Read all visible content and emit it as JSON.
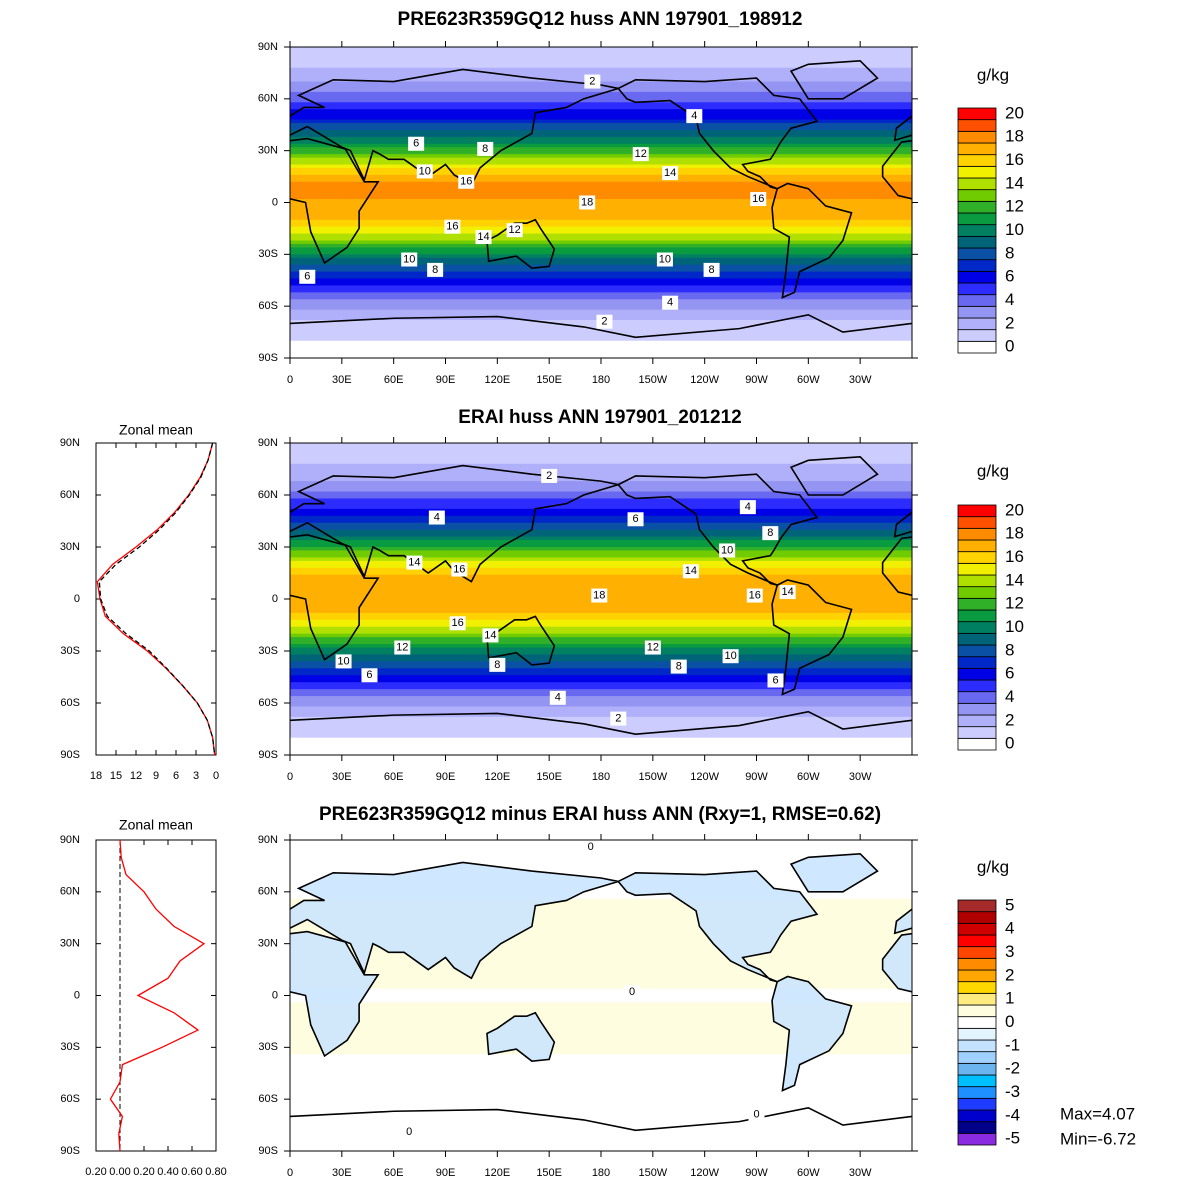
{
  "chart_data": [
    {
      "type": "map",
      "title": "PRE623R359GQ12 huss ANN 197901_198912",
      "xlim": [
        0,
        360
      ],
      "ylim": [
        -90,
        90
      ],
      "xticks": [
        0,
        {
          "value": 30,
          "label": "30E"
        },
        {
          "value": 60,
          "label": "60E"
        },
        {
          "value": 90,
          "label": "90E"
        },
        {
          "value": 120,
          "label": "120E"
        },
        {
          "value": 150,
          "label": "150E"
        },
        180,
        {
          "value": 210,
          "label": "150W"
        },
        {
          "value": 240,
          "label": "120W"
        },
        {
          "value": 270,
          "label": "90W"
        },
        {
          "value": 300,
          "label": "60W"
        },
        {
          "value": 330,
          "label": "30W"
        }
      ],
      "yticks": [
        {
          "value": 90,
          "label": "90N"
        },
        {
          "value": 60,
          "label": "60N"
        },
        {
          "value": 30,
          "label": "30N"
        },
        0,
        {
          "value": -30,
          "label": "30S"
        },
        {
          "value": -60,
          "label": "60S"
        },
        {
          "value": -90,
          "label": "90S"
        }
      ],
      "colorbar": {
        "unit": "g/kg",
        "ticks": [
          0,
          2,
          4,
          6,
          8,
          10,
          12,
          14,
          16,
          18,
          20
        ],
        "colors": [
          "#ffffff",
          "#ccccff",
          "#b0b0fa",
          "#9494f2",
          "#6868f0",
          "#2c2cff",
          "#0000e6",
          "#0028c8",
          "#0a50a5",
          "#006478",
          "#008060",
          "#0a9a40",
          "#30b028",
          "#70cc00",
          "#b0e000",
          "#f0f000",
          "#ffd200",
          "#ffb000",
          "#ff8c00",
          "#ff5000",
          "#ff0000"
        ]
      },
      "contour_labels": [
        {
          "value": 2,
          "lon": 175,
          "lat": 70
        },
        {
          "value": 4,
          "lon": 234,
          "lat": 50
        },
        {
          "value": 6,
          "lon": 73,
          "lat": 34
        },
        {
          "value": 8,
          "lon": 113,
          "lat": 31
        },
        {
          "value": 12,
          "lon": 203,
          "lat": 28
        },
        {
          "value": 14,
          "lon": 220,
          "lat": 17
        },
        {
          "value": 10,
          "lon": 78,
          "lat": 18
        },
        {
          "value": 16,
          "lon": 102,
          "lat": 12
        },
        {
          "value": 18,
          "lon": 172,
          "lat": 0
        },
        {
          "value": 16,
          "lon": 271,
          "lat": 2
        },
        {
          "value": 16,
          "lon": 94,
          "lat": -14
        },
        {
          "value": 14,
          "lon": 112,
          "lat": -20
        },
        {
          "value": 12,
          "lon": 130,
          "lat": -16
        },
        {
          "value": 10,
          "lon": 69,
          "lat": -33
        },
        {
          "value": 8,
          "lon": 84,
          "lat": -39
        },
        {
          "value": 6,
          "lon": 10,
          "lat": -43
        },
        {
          "value": 10,
          "lon": 217,
          "lat": -33
        },
        {
          "value": 8,
          "lon": 244,
          "lat": -39
        },
        {
          "value": 4,
          "lon": 220,
          "lat": -58
        },
        {
          "value": 2,
          "lon": 182,
          "lat": -69
        }
      ]
    },
    {
      "type": "zonal",
      "title": "Zonal mean",
      "y": [
        90,
        80,
        70,
        60,
        50,
        40,
        30,
        20,
        10,
        0,
        -10,
        -20,
        -30,
        -40,
        -50,
        -60,
        -70,
        -80,
        -90
      ],
      "xlim": [
        18,
        0
      ],
      "ylim": [
        -90,
        90
      ],
      "xticks": [
        18,
        15,
        12,
        9,
        6,
        3,
        0
      ],
      "yticks": [
        {
          "value": 90,
          "label": "90N"
        },
        {
          "value": 60,
          "label": "60N"
        },
        {
          "value": 30,
          "label": "30N"
        },
        0,
        {
          "value": -30,
          "label": "30S"
        },
        {
          "value": -60,
          "label": "60S"
        },
        {
          "value": -90,
          "label": "90S"
        }
      ],
      "series": [
        {
          "color": "#ff0000",
          "dash": false,
          "values": [
            0.5,
            1.2,
            2.4,
            4.1,
            6.2,
            8.8,
            12.0,
            15.5,
            17.8,
            17.4,
            16.6,
            13.9,
            10.3,
            7.5,
            5.0,
            2.8,
            1.3,
            0.5,
            0.2
          ]
        },
        {
          "color": "#000000",
          "dash": true,
          "values": [
            0.5,
            1.2,
            2.3,
            4.0,
            6.0,
            8.5,
            11.5,
            15.0,
            17.5,
            17.3,
            16.3,
            13.5,
            10.0,
            7.4,
            5.0,
            2.8,
            1.3,
            0.5,
            0.2
          ]
        }
      ]
    },
    {
      "type": "map",
      "title": "ERAI huss ANN 197901_201212",
      "xlim": [
        0,
        360
      ],
      "ylim": [
        -90,
        90
      ],
      "xticks": [
        0,
        {
          "value": 30,
          "label": "30E"
        },
        {
          "value": 60,
          "label": "60E"
        },
        {
          "value": 90,
          "label": "90E"
        },
        {
          "value": 120,
          "label": "120E"
        },
        {
          "value": 150,
          "label": "150E"
        },
        180,
        {
          "value": 210,
          "label": "150W"
        },
        {
          "value": 240,
          "label": "120W"
        },
        {
          "value": 270,
          "label": "90W"
        },
        {
          "value": 300,
          "label": "60W"
        },
        {
          "value": 330,
          "label": "30W"
        }
      ],
      "yticks": [
        {
          "value": 90,
          "label": "90N"
        },
        {
          "value": 60,
          "label": "60N"
        },
        {
          "value": 30,
          "label": "30N"
        },
        0,
        {
          "value": -30,
          "label": "30S"
        },
        {
          "value": -60,
          "label": "60S"
        },
        {
          "value": -90,
          "label": "90S"
        }
      ],
      "colorbar": {
        "unit": "g/kg",
        "ticks": [
          0,
          2,
          4,
          6,
          8,
          10,
          12,
          14,
          16,
          18,
          20
        ],
        "colors": [
          "#ffffff",
          "#ccccff",
          "#b0b0fa",
          "#9494f2",
          "#6868f0",
          "#2c2cff",
          "#0000e6",
          "#0028c8",
          "#0a50a5",
          "#006478",
          "#008060",
          "#0a9a40",
          "#30b028",
          "#70cc00",
          "#b0e000",
          "#f0f000",
          "#ffd200",
          "#ffb000",
          "#ff8c00",
          "#ff5000",
          "#ff0000"
        ]
      },
      "contour_labels": [
        {
          "value": 2,
          "lon": 150,
          "lat": 71
        },
        {
          "value": 4,
          "lon": 85,
          "lat": 47
        },
        {
          "value": 6,
          "lon": 200,
          "lat": 46
        },
        {
          "value": 4,
          "lon": 265,
          "lat": 53
        },
        {
          "value": 8,
          "lon": 278,
          "lat": 38
        },
        {
          "value": 10,
          "lon": 253,
          "lat": 28
        },
        {
          "value": 14,
          "lon": 72,
          "lat": 21
        },
        {
          "value": 16,
          "lon": 98,
          "lat": 17
        },
        {
          "value": 14,
          "lon": 232,
          "lat": 16
        },
        {
          "value": 18,
          "lon": 179,
          "lat": 2
        },
        {
          "value": 16,
          "lon": 269,
          "lat": 2
        },
        {
          "value": 14,
          "lon": 288,
          "lat": 4
        },
        {
          "value": 16,
          "lon": 97,
          "lat": -14
        },
        {
          "value": 14,
          "lon": 116,
          "lat": -21
        },
        {
          "value": 12,
          "lon": 65,
          "lat": -28
        },
        {
          "value": 12,
          "lon": 210,
          "lat": -28
        },
        {
          "value": 10,
          "lon": 31,
          "lat": -36
        },
        {
          "value": 8,
          "lon": 120,
          "lat": -38
        },
        {
          "value": 8,
          "lon": 225,
          "lat": -39
        },
        {
          "value": 10,
          "lon": 255,
          "lat": -33
        },
        {
          "value": 6,
          "lon": 46,
          "lat": -44
        },
        {
          "value": 6,
          "lon": 281,
          "lat": -47
        },
        {
          "value": 4,
          "lon": 155,
          "lat": -57
        },
        {
          "value": 2,
          "lon": 190,
          "lat": -69
        }
      ]
    },
    {
      "type": "zonal",
      "title": "Zonal mean",
      "y": [
        90,
        80,
        70,
        60,
        50,
        40,
        30,
        20,
        10,
        0,
        -10,
        -20,
        -30,
        -40,
        -50,
        -60,
        -70,
        -80,
        -90
      ],
      "xlim": [
        -0.2,
        0.8
      ],
      "ylim": [
        -90,
        90
      ],
      "xticks": [
        {
          "value": -0.2,
          "label": "0.20"
        },
        {
          "value": 0,
          "label": "0.00"
        },
        {
          "value": 0.2,
          "label": "0.20"
        },
        {
          "value": 0.4,
          "label": "0.40"
        },
        {
          "value": 0.6,
          "label": "0.60"
        },
        {
          "value": 0.8,
          "label": "0.80"
        }
      ],
      "yticks": [
        {
          "value": 90,
          "label": "90N"
        },
        {
          "value": 60,
          "label": "60N"
        },
        {
          "value": 30,
          "label": "30N"
        },
        0,
        {
          "value": -30,
          "label": "30S"
        },
        {
          "value": -60,
          "label": "60S"
        },
        {
          "value": -90,
          "label": "90S"
        }
      ],
      "series": [
        {
          "color": "#ff0000",
          "dash": false,
          "values": [
            0.0,
            0.01,
            0.05,
            0.2,
            0.3,
            0.45,
            0.7,
            0.5,
            0.4,
            0.15,
            0.45,
            0.65,
            0.35,
            0.02,
            0.0,
            -0.08,
            0.02,
            -0.01,
            0.0
          ]
        }
      ]
    },
    {
      "type": "map",
      "title": "PRE623R359GQ12 minus ERAI huss ANN (Rxy=1, RMSE=0.62)",
      "xlim": [
        0,
        360
      ],
      "ylim": [
        -90,
        90
      ],
      "xticks": [
        0,
        {
          "value": 30,
          "label": "30E"
        },
        {
          "value": 60,
          "label": "60E"
        },
        {
          "value": 90,
          "label": "90E"
        },
        {
          "value": 120,
          "label": "120E"
        },
        {
          "value": 150,
          "label": "150E"
        },
        180,
        {
          "value": 210,
          "label": "150W"
        },
        {
          "value": 240,
          "label": "120W"
        },
        {
          "value": 270,
          "label": "90W"
        },
        {
          "value": 300,
          "label": "60W"
        },
        {
          "value": 330,
          "label": "30W"
        }
      ],
      "yticks": [
        {
          "value": 90,
          "label": "90N"
        },
        {
          "value": 60,
          "label": "60N"
        },
        {
          "value": 30,
          "label": "30N"
        },
        0,
        {
          "value": -30,
          "label": "30S"
        },
        {
          "value": -60,
          "label": "60S"
        },
        {
          "value": -90,
          "label": "90S"
        }
      ],
      "colorbar": {
        "unit": "g/kg",
        "ticks": [
          -5,
          -4,
          -3,
          -2,
          -1,
          0,
          1,
          2,
          3,
          4,
          5
        ],
        "colors": [
          "#8a2be2",
          "#00008b",
          "#0000cd",
          "#1e3cff",
          "#1e90ff",
          "#00bfff",
          "#6cb4f0",
          "#a0d0ff",
          "#c4e2ff",
          "#e4f4ff",
          "#ffffff",
          "#fffde0",
          "#ffec80",
          "#ffd700",
          "#ffa500",
          "#ff8c00",
          "#ff4500",
          "#ff0000",
          "#d00000",
          "#b00000",
          "#a52a2a"
        ]
      },
      "contour_labels": [
        {
          "value": 0,
          "lon": 174,
          "lat": 86
        },
        {
          "value": 0,
          "lon": 198,
          "lat": 2
        },
        {
          "value": 0,
          "lon": 270,
          "lat": -69
        },
        {
          "value": 0,
          "lon": 69,
          "lat": -79
        }
      ],
      "annotations": [
        "Max=4.07",
        "Min=-6.72"
      ]
    }
  ]
}
